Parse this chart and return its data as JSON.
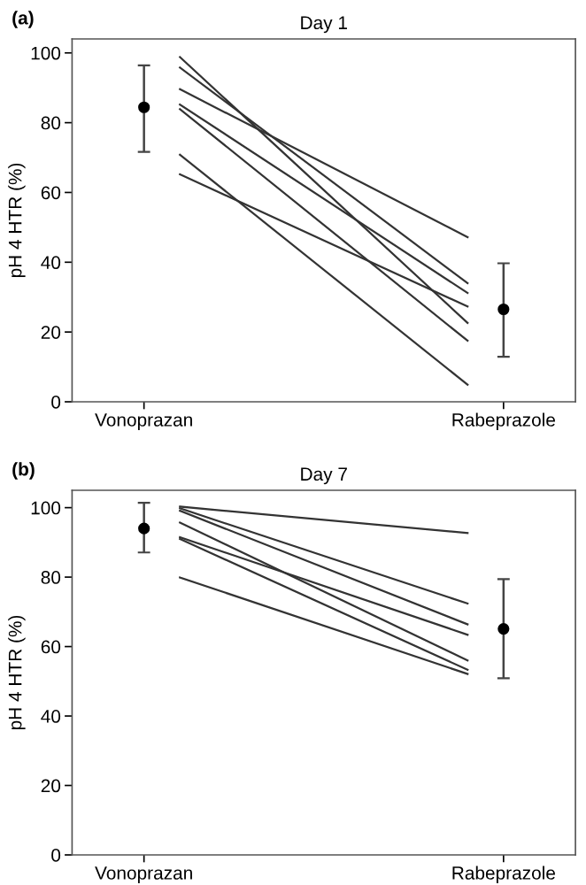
{
  "chart_data": [
    {
      "type": "line",
      "title": "Day 1",
      "annotations": [
        "(a)"
      ],
      "ylabel": "pH 4 HTR (%)",
      "categories": [
        "Vonoprazan",
        null,
        null,
        null,
        null,
        null,
        null,
        null,
        null,
        null,
        "Rabeprazole"
      ],
      "ylim": [
        0,
        104
      ],
      "yticks": [
        0,
        20,
        40,
        60,
        80,
        100
      ],
      "grid": false,
      "legend": false,
      "series": [
        {
          "color": "#333333",
          "values": [
            null,
            98.8,
            null,
            null,
            null,
            null,
            null,
            null,
            null,
            22.6,
            null
          ]
        },
        {
          "color": "#333333",
          "values": [
            null,
            95.8,
            null,
            null,
            null,
            null,
            null,
            null,
            null,
            34,
            null
          ]
        },
        {
          "color": "#333333",
          "values": [
            null,
            89.6,
            null,
            null,
            null,
            null,
            null,
            null,
            null,
            47.2,
            null
          ]
        },
        {
          "color": "#333333",
          "values": [
            null,
            85.2,
            null,
            null,
            null,
            null,
            null,
            null,
            null,
            31.2,
            null
          ]
        },
        {
          "color": "#333333",
          "values": [
            null,
            83.9,
            null,
            null,
            null,
            null,
            null,
            null,
            null,
            17.5,
            null
          ]
        },
        {
          "color": "#333333",
          "values": [
            null,
            70.8,
            null,
            null,
            null,
            null,
            null,
            null,
            null,
            4.9,
            null
          ]
        },
        {
          "color": "#333333",
          "values": [
            null,
            65.2,
            null,
            null,
            null,
            null,
            null,
            null,
            null,
            27.3,
            null
          ]
        },
        {
          "type": "scatter",
          "marker": "circle",
          "color": "#000000",
          "values": [
            84.4,
            null,
            null,
            null,
            null,
            null,
            null,
            null,
            null,
            null,
            26.5
          ],
          "errors": [
            [
              71.6,
              96.4
            ],
            null,
            null,
            null,
            null,
            null,
            null,
            null,
            null,
            null,
            [
              12.9,
              39.7
            ]
          ]
        }
      ]
    },
    {
      "type": "line",
      "title": "Day 7",
      "annotations": [
        "(b)"
      ],
      "ylabel": "pH 4 HTR (%)",
      "categories": [
        "Vonoprazan",
        null,
        null,
        null,
        null,
        null,
        null,
        null,
        null,
        null,
        "Rabeprazole"
      ],
      "ylim": [
        0,
        105
      ],
      "yticks": [
        0,
        20,
        40,
        60,
        80,
        100
      ],
      "grid": false,
      "legend": false,
      "series": [
        {
          "color": "#333333",
          "values": [
            null,
            100.3,
            null,
            null,
            null,
            null,
            null,
            null,
            null,
            92.7,
            null
          ]
        },
        {
          "color": "#333333",
          "values": [
            null,
            99.8,
            null,
            null,
            null,
            null,
            null,
            null,
            null,
            72.4,
            null
          ]
        },
        {
          "color": "#333333",
          "values": [
            null,
            99.1,
            null,
            null,
            null,
            null,
            null,
            null,
            null,
            66.4,
            null
          ]
        },
        {
          "color": "#333333",
          "values": [
            null,
            95.7,
            null,
            null,
            null,
            null,
            null,
            null,
            null,
            56.0,
            null
          ]
        },
        {
          "color": "#333333",
          "values": [
            null,
            91.5,
            null,
            null,
            null,
            null,
            null,
            null,
            null,
            63.4,
            null
          ]
        },
        {
          "color": "#333333",
          "values": [
            null,
            91.0,
            null,
            null,
            null,
            null,
            null,
            null,
            null,
            53.3,
            null
          ]
        },
        {
          "color": "#333333",
          "values": [
            null,
            79.9,
            null,
            null,
            null,
            null,
            null,
            null,
            null,
            52.1,
            null
          ]
        },
        {
          "type": "scatter",
          "marker": "circle",
          "color": "#000000",
          "values": [
            94.0,
            null,
            null,
            null,
            null,
            null,
            null,
            null,
            null,
            null,
            65.1
          ],
          "errors": [
            [
              87.1,
              101.4
            ],
            null,
            null,
            null,
            null,
            null,
            null,
            null,
            null,
            null,
            [
              50.9,
              79.4
            ]
          ]
        }
      ]
    }
  ]
}
